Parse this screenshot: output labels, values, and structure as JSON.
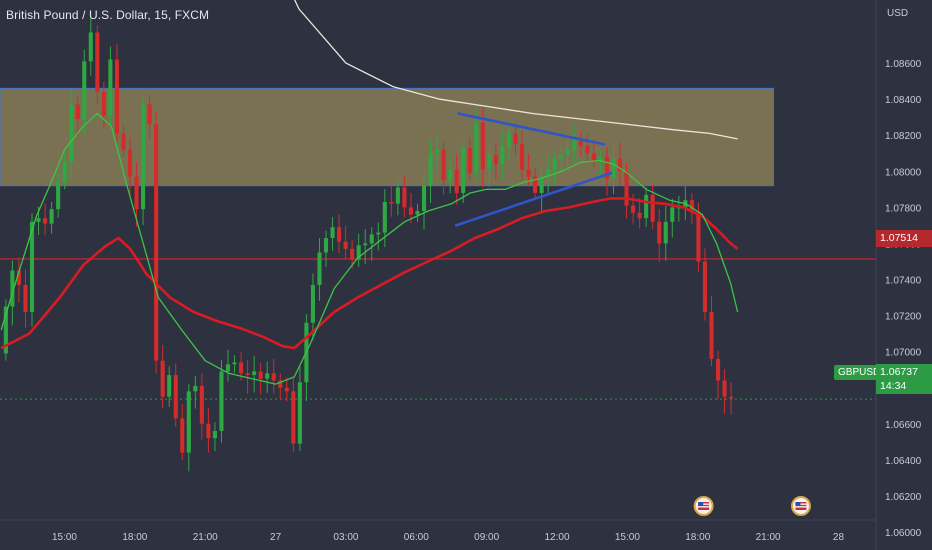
{
  "header": {
    "title": "British Pound / U.S. Dollar, 15, FXCM",
    "currency": "USD"
  },
  "price_tags": {
    "level": "1.07514",
    "last": "1.06737",
    "countdown": "14:34",
    "symbol": "GBPUSD"
  },
  "colors": {
    "background": "#2e3140",
    "bull": "#2ea843",
    "bear": "#d42b2b",
    "zone": "#b8a560",
    "fast_ma": "#3cc545",
    "slow_ma": "#d91c24",
    "long_ma": "#e9e7da",
    "trendlines": "#2f56c8",
    "level_line": "#b5282e",
    "last_line": "#2d9b44"
  },
  "icons": [
    "us-flag-event-icon",
    "us-flag-event-icon"
  ],
  "chart_data": {
    "type": "candlestick",
    "title": "British Pound / U.S. Dollar, 15, FXCM",
    "ylim": [
      1.059,
      1.0895
    ],
    "y_ticks": [
      "1.08600",
      "1.08400",
      "1.08200",
      "1.08000",
      "1.07800",
      "1.07600",
      "1.07400",
      "1.07200",
      "1.07000",
      "1.06800",
      "1.06600",
      "1.06400",
      "1.06200",
      "1.06000"
    ],
    "y_tick_values": [
      1.086,
      1.084,
      1.082,
      1.08,
      1.078,
      1.076,
      1.074,
      1.072,
      1.07,
      1.068,
      1.066,
      1.064,
      1.062,
      1.06
    ],
    "x_ticks": [
      "15:00",
      "18:00",
      "21:00",
      "27",
      "03:00",
      "06:00",
      "09:00",
      "12:00",
      "15:00",
      "18:00",
      "21:00",
      "28"
    ],
    "x_tick_values": [
      15,
      18,
      21,
      24,
      27,
      30,
      33,
      36,
      39,
      42,
      45,
      48
    ],
    "xlim": [
      12.25,
      49.6
    ],
    "zone": {
      "from": 1.0792,
      "to": 1.0846
    },
    "horizontal_level": 1.07514,
    "last_price": 1.06737,
    "opens": [
      1.0699,
      1.0725,
      1.0745,
      1.0737,
      1.0722,
      1.0772,
      1.0774,
      1.0771,
      1.0779,
      1.0794,
      1.0805,
      1.0837,
      1.0829,
      1.0861,
      1.0877,
      1.0844,
      1.0831,
      1.0862,
      1.0821,
      1.0812,
      1.0797,
      1.0779,
      1.0837,
      1.0826,
      1.0695,
      1.0675,
      1.0687,
      1.0663,
      1.0644,
      1.0678,
      1.0681,
      1.066,
      1.0652,
      1.0656,
      1.0689,
      1.0693,
      1.0694,
      1.0688,
      1.0687,
      1.0689,
      1.0685,
      1.0688,
      1.0684,
      1.068,
      1.0678,
      1.0649,
      1.0683,
      1.0716,
      1.0737,
      1.0755,
      1.0763,
      1.0769,
      1.0761,
      1.0757,
      1.0751,
      1.0759,
      1.076,
      1.0765,
      1.0766,
      1.0783,
      1.0782,
      1.0791,
      1.078,
      1.0776,
      1.0778,
      1.0792,
      1.081,
      1.0812,
      1.0795,
      1.0801,
      1.0788,
      1.0813,
      1.0799,
      1.0827,
      1.0801,
      1.0809,
      1.0804,
      1.0814,
      1.0821,
      1.0815,
      1.0801,
      1.0797,
      1.0788,
      1.0797,
      1.0801,
      1.0807,
      1.0809,
      1.0812,
      1.0817,
      1.0814,
      1.081,
      1.0806,
      1.0808,
      1.0796,
      1.0807,
      1.08,
      1.0781,
      1.0777,
      1.0774,
      1.0787,
      1.0772,
      1.076,
      1.0772,
      1.078,
      1.078,
      1.0784,
      1.0777,
      1.075,
      1.0722,
      1.0696,
      1.0684,
      1.0675
    ],
    "closes": [
      1.0725,
      1.0745,
      1.0737,
      1.0722,
      1.0772,
      1.0774,
      1.0771,
      1.0779,
      1.0794,
      1.0805,
      1.0837,
      1.0829,
      1.0861,
      1.0877,
      1.0844,
      1.0831,
      1.0862,
      1.0821,
      1.0812,
      1.0797,
      1.0779,
      1.0837,
      1.0826,
      1.0695,
      1.0675,
      1.0687,
      1.0663,
      1.0644,
      1.0678,
      1.0681,
      1.066,
      1.0652,
      1.0656,
      1.0689,
      1.0693,
      1.0694,
      1.0688,
      1.0687,
      1.0689,
      1.0685,
      1.0688,
      1.0684,
      1.068,
      1.0678,
      1.0649,
      1.0683,
      1.0716,
      1.0737,
      1.0755,
      1.0763,
      1.0769,
      1.0761,
      1.0757,
      1.0751,
      1.0759,
      1.076,
      1.0765,
      1.0766,
      1.0783,
      1.0782,
      1.0791,
      1.078,
      1.0776,
      1.0778,
      1.0792,
      1.081,
      1.0812,
      1.0795,
      1.0801,
      1.0788,
      1.0813,
      1.0799,
      1.0827,
      1.0801,
      1.0809,
      1.0804,
      1.0814,
      1.0821,
      1.0815,
      1.0801,
      1.0797,
      1.0788,
      1.0797,
      1.0801,
      1.0807,
      1.0809,
      1.0812,
      1.0817,
      1.0814,
      1.081,
      1.0806,
      1.0808,
      1.0796,
      1.0807,
      1.08,
      1.0781,
      1.0777,
      1.0774,
      1.0787,
      1.0772,
      1.076,
      1.0772,
      1.078,
      1.078,
      1.0784,
      1.0777,
      1.075,
      1.0722,
      1.0696,
      1.0684,
      1.0675,
      1.0674
    ],
    "fast_ma": [
      [
        12.3,
        1.0712
      ],
      [
        13.0,
        1.0742
      ],
      [
        13.8,
        1.0775
      ],
      [
        14.5,
        1.0796
      ],
      [
        15.0,
        1.0812
      ],
      [
        15.8,
        1.0825
      ],
      [
        16.4,
        1.0832
      ],
      [
        17.0,
        1.0825
      ],
      [
        17.6,
        1.0795
      ],
      [
        18.4,
        1.0758
      ],
      [
        19.0,
        1.073
      ],
      [
        20.0,
        1.0712
      ],
      [
        21.0,
        1.0695
      ],
      [
        22.0,
        1.0688
      ],
      [
        23.0,
        1.0685
      ],
      [
        24.0,
        1.0682
      ],
      [
        24.8,
        1.0686
      ],
      [
        25.5,
        1.0705
      ],
      [
        26.5,
        1.0735
      ],
      [
        27.5,
        1.0752
      ],
      [
        28.5,
        1.0762
      ],
      [
        29.5,
        1.0772
      ],
      [
        30.5,
        1.0778
      ],
      [
        31.5,
        1.0782
      ],
      [
        32.3,
        1.0788
      ],
      [
        33.0,
        1.079
      ],
      [
        33.8,
        1.079
      ],
      [
        34.6,
        1.0794
      ],
      [
        35.3,
        1.0796
      ],
      [
        36.2,
        1.08
      ],
      [
        37.0,
        1.0805
      ],
      [
        37.8,
        1.0806
      ],
      [
        38.4,
        1.0804
      ],
      [
        39.0,
        1.0799
      ],
      [
        39.8,
        1.079
      ],
      [
        40.8,
        1.0784
      ],
      [
        41.5,
        1.0782
      ],
      [
        42.2,
        1.0776
      ],
      [
        42.8,
        1.076
      ],
      [
        43.4,
        1.0738
      ],
      [
        43.7,
        1.0722
      ]
    ],
    "slow_ma": [
      [
        12.3,
        1.0702
      ],
      [
        13.5,
        1.071
      ],
      [
        14.8,
        1.073
      ],
      [
        15.8,
        1.0748
      ],
      [
        16.7,
        1.0758
      ],
      [
        17.3,
        1.0763
      ],
      [
        17.8,
        1.0757
      ],
      [
        18.5,
        1.0743
      ],
      [
        19.5,
        1.073
      ],
      [
        20.5,
        1.0722
      ],
      [
        21.5,
        1.0717
      ],
      [
        22.5,
        1.0713
      ],
      [
        23.5,
        1.0708
      ],
      [
        24.3,
        1.0703
      ],
      [
        24.8,
        1.0702
      ],
      [
        25.5,
        1.071
      ],
      [
        26.5,
        1.0722
      ],
      [
        27.5,
        1.073
      ],
      [
        28.5,
        1.0737
      ],
      [
        29.5,
        1.0744
      ],
      [
        30.5,
        1.075
      ],
      [
        31.5,
        1.0756
      ],
      [
        32.5,
        1.0763
      ],
      [
        33.5,
        1.0768
      ],
      [
        34.5,
        1.0774
      ],
      [
        35.5,
        1.0778
      ],
      [
        36.5,
        1.078
      ],
      [
        37.5,
        1.0783
      ],
      [
        38.3,
        1.0785
      ],
      [
        39.0,
        1.0785
      ],
      [
        39.8,
        1.0783
      ],
      [
        40.6,
        1.0782
      ],
      [
        41.4,
        1.078
      ],
      [
        42.2,
        1.0775
      ],
      [
        42.8,
        1.0768
      ],
      [
        43.4,
        1.076
      ],
      [
        43.7,
        1.0757
      ]
    ],
    "long_ma": [
      [
        23.0,
        1.0945
      ],
      [
        25.0,
        1.089
      ],
      [
        27.0,
        1.086
      ],
      [
        29.0,
        1.0847
      ],
      [
        31.0,
        1.084
      ],
      [
        33.0,
        1.0836
      ],
      [
        35.0,
        1.0832
      ],
      [
        37.0,
        1.0829
      ],
      [
        39.0,
        1.0826
      ],
      [
        41.0,
        1.0823
      ],
      [
        42.5,
        1.0821
      ],
      [
        43.7,
        1.0818
      ]
    ],
    "trendlines": [
      {
        "from": [
          31.8,
          1.0832
        ],
        "to": [
          38.0,
          1.0815
        ]
      },
      {
        "from": [
          31.7,
          1.077
        ],
        "to": [
          38.3,
          1.0799
        ]
      }
    ]
  }
}
